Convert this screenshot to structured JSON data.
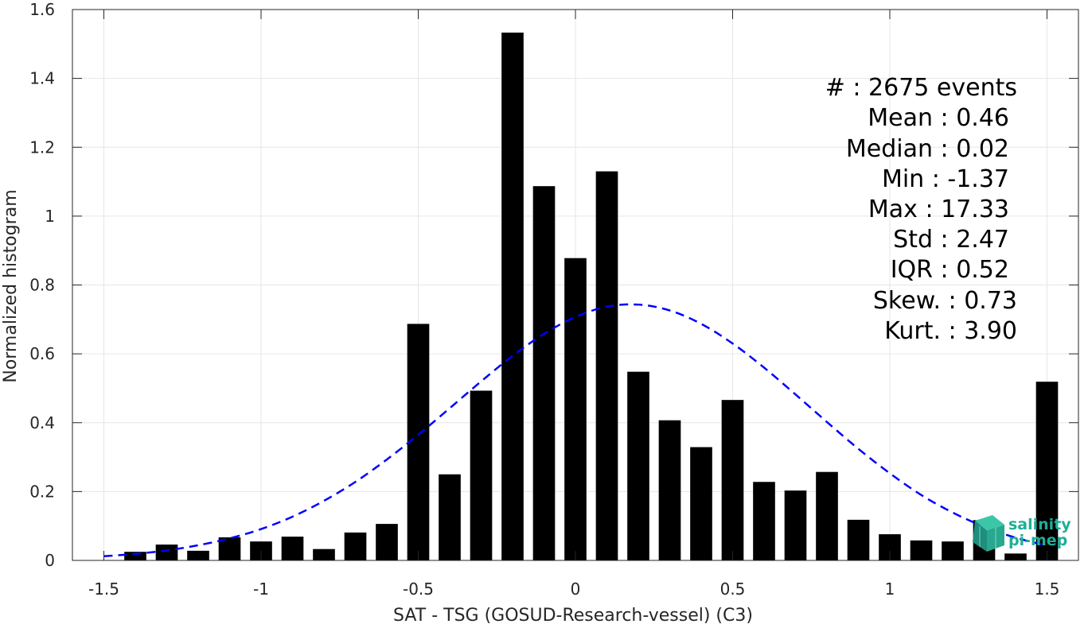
{
  "chart_data": {
    "type": "bar",
    "title": "",
    "xlabel": "SAT - TSG (GOSUD-Research-vessel) (C3)",
    "ylabel": "Normalized histogram",
    "xlim": [
      -1.6,
      1.6
    ],
    "ylim": [
      0,
      1.6
    ],
    "grid": true,
    "x_ticks": [
      -1.5,
      -1,
      -0.5,
      0,
      0.5,
      1,
      1.5
    ],
    "x_tick_labels": [
      "-1.5",
      "-1",
      "-0.5",
      "0",
      "0.5",
      "1",
      "1.5"
    ],
    "y_ticks": [
      0,
      0.2,
      0.4,
      0.6,
      0.8,
      1,
      1.2,
      1.4,
      1.6
    ],
    "y_tick_labels": [
      "0",
      "0.2",
      "0.4",
      "0.6",
      "0.8",
      "1",
      "1.2",
      "1.4",
      "1.6"
    ],
    "bar_width": 0.07,
    "series": [
      {
        "type": "bar",
        "color": "#000000",
        "x": [
          -1.4,
          -1.3,
          -1.2,
          -1.1,
          -1.0,
          -0.9,
          -0.8,
          -0.7,
          -0.6,
          -0.5,
          -0.4,
          -0.3,
          -0.2,
          -0.1,
          0.0,
          0.1,
          0.2,
          0.3,
          0.4,
          0.5,
          0.6,
          0.7,
          0.8,
          0.9,
          1.0,
          1.1,
          1.2,
          1.3,
          1.4,
          1.5
        ],
        "values": [
          0.025,
          0.046,
          0.028,
          0.067,
          0.055,
          0.069,
          0.033,
          0.081,
          0.106,
          0.687,
          0.25,
          0.493,
          1.533,
          1.087,
          0.878,
          1.13,
          0.548,
          0.407,
          0.329,
          0.466,
          0.228,
          0.203,
          0.257,
          0.118,
          0.076,
          0.058,
          0.055,
          0.117,
          0.02,
          0.519
        ]
      },
      {
        "type": "line",
        "style": "dashed",
        "color": "#0000ff",
        "x": [
          -1.5,
          -1.4,
          -1.3,
          -1.2,
          -1.1,
          -1.0,
          -0.9,
          -0.8,
          -0.7,
          -0.6,
          -0.5,
          -0.4,
          -0.3,
          -0.2,
          -0.1,
          0.0,
          0.1,
          0.2,
          0.3,
          0.4,
          0.5,
          0.6,
          0.7,
          0.8,
          0.9,
          1.0,
          1.1,
          1.2,
          1.3,
          1.4,
          1.5
        ],
        "values": [
          0.012,
          0.019,
          0.029,
          0.044,
          0.064,
          0.091,
          0.127,
          0.173,
          0.228,
          0.293,
          0.365,
          0.442,
          0.52,
          0.594,
          0.658,
          0.707,
          0.737,
          0.743,
          0.726,
          0.687,
          0.63,
          0.56,
          0.482,
          0.402,
          0.324,
          0.253,
          0.19,
          0.139,
          0.098,
          0.066,
          0.043
        ]
      }
    ]
  },
  "stats": {
    "count": "#  : 2675 events",
    "mean": "Mean : 0.46",
    "median": "Median : 0.02",
    "min": "Min : -1.37",
    "max": "Max : 17.33",
    "std": "Std : 2.47",
    "iqr": "IQR : 0.52",
    "skew": "Skew. : 0.73",
    "kurt": "Kurt. : 3.90"
  },
  "logo": {
    "line1": "salinity",
    "line2": "pi-mep",
    "icon": "cube-logo-icon",
    "color": "#1fae96"
  }
}
